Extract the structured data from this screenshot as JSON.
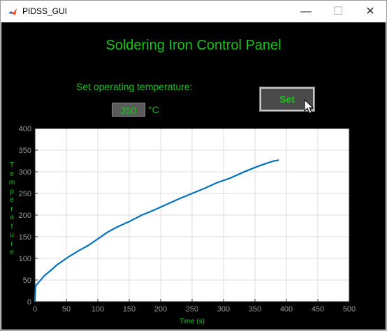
{
  "window": {
    "title": "PIDSS_GUI",
    "controls": {
      "minimize": "—",
      "maximize": "☐",
      "close": "✕"
    },
    "app_icon": "matlab-icon"
  },
  "panel": {
    "title": "Soldering Iron Control Panel",
    "set_label": "Set operating temperature:",
    "temperature_value": "350",
    "unit": "°C",
    "set_button": "Set"
  },
  "colors": {
    "text": "#17c417",
    "background": "#000000",
    "line": "#0072bd",
    "axes_bg": "#ffffff"
  },
  "chart_data": {
    "type": "line",
    "title": "",
    "xlabel": "Time (s)",
    "ylabel": "Temperature",
    "xlim": [
      0,
      500
    ],
    "ylim": [
      0,
      400
    ],
    "xticks": [
      0,
      50,
      100,
      150,
      200,
      250,
      300,
      350,
      400,
      450,
      500
    ],
    "yticks": [
      0,
      50,
      100,
      150,
      200,
      250,
      300,
      350,
      400
    ],
    "grid": true,
    "series": [
      {
        "x": [
          0,
          1,
          3,
          8,
          15,
          25,
          35,
          45,
          55,
          70,
          85,
          100,
          115,
          130,
          150,
          170,
          190,
          210,
          230,
          250,
          270,
          290,
          310,
          330,
          350,
          365,
          380,
          388
        ],
        "y": [
          0,
          35,
          40,
          48,
          60,
          72,
          85,
          95,
          105,
          118,
          130,
          145,
          160,
          172,
          185,
          200,
          212,
          225,
          238,
          250,
          262,
          275,
          285,
          298,
          310,
          318,
          325,
          327
        ]
      }
    ]
  }
}
